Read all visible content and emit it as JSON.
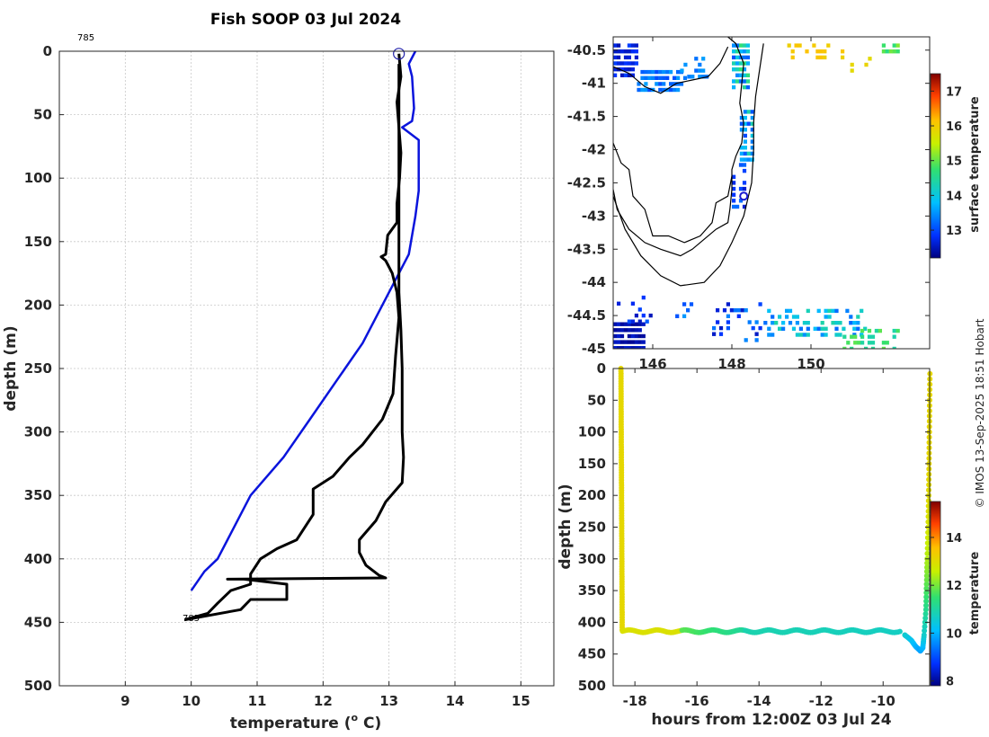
{
  "title": "Fish SOOP 03 Jul 2024",
  "watermark": "© IMOS 13-Sep-2025 18:51 Hobart",
  "colors": {
    "profile": "#000000",
    "climatology": "#0a14dc",
    "coast": "#000000",
    "marker": "#1a1ad0"
  },
  "chart_data": [
    {
      "type": "line",
      "name": "temperature-depth profile",
      "xlabel": "temperature (",
      "xlabel_sup": "o",
      "xlabel_tail": " C)",
      "ylabel": "depth (m)",
      "xlim": [
        8,
        15.5
      ],
      "ylim": [
        500,
        0
      ],
      "xticks": [
        "9",
        "10",
        "11",
        "12",
        "13",
        "14",
        "15"
      ],
      "yticks": [
        "0",
        "50",
        "100",
        "150",
        "200",
        "250",
        "300",
        "350",
        "400",
        "450",
        "500"
      ],
      "top_label": "785",
      "bottom_label": "785",
      "start_marker": {
        "temperature": 13.15,
        "depth": 2
      },
      "series": [
        {
          "name": "climatology",
          "color": "#0a14dc",
          "points": [
            [
              13.4,
              0
            ],
            [
              13.3,
              10
            ],
            [
              13.35,
              20
            ],
            [
              13.38,
              45
            ],
            [
              13.35,
              55
            ],
            [
              13.2,
              60
            ],
            [
              13.45,
              70
            ],
            [
              13.45,
              90
            ],
            [
              13.45,
              110
            ],
            [
              13.4,
              130
            ],
            [
              13.3,
              160
            ],
            [
              13.1,
              180
            ],
            [
              12.9,
              200
            ],
            [
              12.6,
              230
            ],
            [
              12.2,
              260
            ],
            [
              11.8,
              290
            ],
            [
              11.4,
              320
            ],
            [
              10.9,
              350
            ],
            [
              10.6,
              380
            ],
            [
              10.4,
              400
            ],
            [
              10.2,
              410
            ],
            [
              10.0,
              425
            ]
          ]
        },
        {
          "name": "profile-down",
          "color": "#000000",
          "points": [
            [
              13.15,
              2
            ],
            [
              13.18,
              20
            ],
            [
              13.12,
              40
            ],
            [
              13.15,
              60
            ],
            [
              13.18,
              80
            ],
            [
              13.16,
              100
            ],
            [
              13.12,
              120
            ],
            [
              13.12,
              135
            ],
            [
              12.98,
              145
            ],
            [
              12.95,
              160
            ],
            [
              12.88,
              162
            ],
            [
              12.95,
              165
            ],
            [
              13.05,
              175
            ],
            [
              13.12,
              190
            ],
            [
              13.15,
              210
            ],
            [
              13.1,
              240
            ],
            [
              13.06,
              270
            ],
            [
              12.9,
              290
            ],
            [
              12.6,
              310
            ],
            [
              12.4,
              320
            ],
            [
              12.15,
              335
            ],
            [
              11.85,
              345
            ],
            [
              11.85,
              365
            ],
            [
              11.6,
              385
            ],
            [
              11.3,
              392
            ],
            [
              11.05,
              400
            ],
            [
              10.9,
              412
            ],
            [
              10.9,
              420
            ],
            [
              10.6,
              425
            ],
            [
              10.4,
              435
            ],
            [
              10.25,
              443
            ],
            [
              9.9,
              448
            ]
          ]
        },
        {
          "name": "profile-up",
          "color": "#000000",
          "points": [
            [
              9.9,
              448
            ],
            [
              10.75,
              440
            ],
            [
              10.9,
              432
            ],
            [
              11.45,
              432
            ],
            [
              11.45,
              420
            ],
            [
              10.8,
              416
            ],
            [
              10.55,
              416
            ],
            [
              12.95,
              415
            ],
            [
              12.85,
              413
            ],
            [
              12.65,
              405
            ],
            [
              12.55,
              395
            ],
            [
              12.55,
              385
            ],
            [
              12.8,
              370
            ],
            [
              12.95,
              355
            ],
            [
              13.2,
              340
            ],
            [
              13.22,
              320
            ],
            [
              13.2,
              300
            ],
            [
              13.2,
              280
            ],
            [
              13.2,
              250
            ],
            [
              13.18,
              220
            ],
            [
              13.15,
              190
            ],
            [
              13.15,
              150
            ],
            [
              13.15,
              100
            ],
            [
              13.15,
              50
            ],
            [
              13.15,
              10
            ]
          ]
        }
      ]
    },
    {
      "type": "heatmap",
      "name": "surface temperature map",
      "xlim": [
        145,
        153
      ],
      "ylim": [
        -45,
        -40.3
      ],
      "xticks": [
        "146",
        "148",
        "150"
      ],
      "yticks": [
        "-40.5",
        "-41",
        "-41.5",
        "-42",
        "-42.5",
        "-43",
        "-43.5",
        "-44",
        "-44.5",
        "-45"
      ],
      "colorbar_label": "surface temperature",
      "colorbar_range": [
        12.2,
        17.5
      ],
      "colorbar_ticks": [
        "13",
        "14",
        "15",
        "16",
        "17"
      ],
      "station": {
        "lon": 148.3,
        "lat": -42.7
      }
    },
    {
      "type": "scatter",
      "name": "depth-time section",
      "xlabel": "hours from 12:00Z 03 Jul 24",
      "ylabel": "depth (m)",
      "xlim": [
        -18.7,
        -8.5
      ],
      "ylim": [
        500,
        0
      ],
      "xticks": [
        "-18",
        "-16",
        "-14",
        "-12",
        "-10"
      ],
      "yticks": [
        "0",
        "50",
        "100",
        "150",
        "200",
        "250",
        "300",
        "350",
        "400",
        "450",
        "500"
      ],
      "colorbar_label": "temperature",
      "colorbar_range": [
        7.8,
        15.5
      ],
      "colorbar_ticks": [
        "8",
        "10",
        "12",
        "14"
      ]
    }
  ]
}
